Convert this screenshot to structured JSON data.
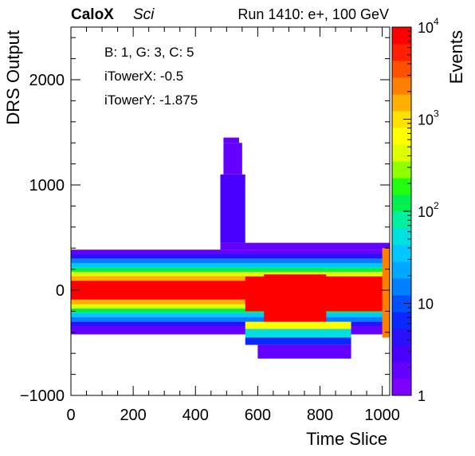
{
  "chart_data": {
    "type": "heatmap",
    "title_parts": {
      "experiment": "CaloX",
      "detector": "Sci",
      "run": "Run 1410: e+, 100 GeV"
    },
    "annotations": [
      "B: 1, G: 3, C: 5",
      "iTowerX: -0.5",
      "iTowerY: -1.875"
    ],
    "xlabel": "Time Slice",
    "ylabel": "DRS Output",
    "zlabel": "Events",
    "xlim": [
      0,
      1024
    ],
    "ylim": [
      -1000,
      2500
    ],
    "zlim": [
      1,
      10000
    ],
    "z_scale": "log",
    "x_ticks": [
      0,
      200,
      400,
      600,
      800,
      1000
    ],
    "x_tick_labels": [
      "0",
      "200",
      "400",
      "600",
      "800",
      "1000"
    ],
    "y_ticks": [
      -1000,
      0,
      1000,
      2000
    ],
    "y_tick_labels": [
      "−1000",
      "0",
      "1000",
      "2000"
    ],
    "z_ticks": [
      1,
      10,
      100,
      1000,
      10000
    ],
    "z_tick_labels": [
      "1",
      "10",
      "10^2",
      "10^3",
      "10^4"
    ],
    "palette": [
      "#7b00ff",
      "#6400ff",
      "#4a00ff",
      "#2a10ff",
      "#0a28ff",
      "#0050ff",
      "#0080ff",
      "#00a8ff",
      "#00c8ff",
      "#00e0e0",
      "#00f0a0",
      "#00f050",
      "#20ff10",
      "#90ff00",
      "#e0ff00",
      "#ffff00",
      "#ffe000",
      "#ffb000",
      "#ff8000",
      "#ff5000",
      "#ff2000",
      "#ff0000"
    ],
    "bands": [
      {
        "x": [
          0,
          1024
        ],
        "y": [
          -90,
          90
        ],
        "level": 1.0
      },
      {
        "x": [
          0,
          1024
        ],
        "y": [
          90,
          135
        ],
        "level": 0.83
      },
      {
        "x": [
          0,
          1024
        ],
        "y": [
          -135,
          -90
        ],
        "level": 0.83
      },
      {
        "x": [
          0,
          1024
        ],
        "y": [
          135,
          175
        ],
        "level": 0.68
      },
      {
        "x": [
          0,
          1024
        ],
        "y": [
          -175,
          -135
        ],
        "level": 0.68
      },
      {
        "x": [
          0,
          1024
        ],
        "y": [
          175,
          215
        ],
        "level": 0.53
      },
      {
        "x": [
          0,
          1024
        ],
        "y": [
          -215,
          -175
        ],
        "level": 0.53
      },
      {
        "x": [
          0,
          1024
        ],
        "y": [
          215,
          255
        ],
        "level": 0.4
      },
      {
        "x": [
          0,
          1024
        ],
        "y": [
          -255,
          -215
        ],
        "level": 0.4
      },
      {
        "x": [
          0,
          1024
        ],
        "y": [
          255,
          300
        ],
        "level": 0.27
      },
      {
        "x": [
          0,
          1024
        ],
        "y": [
          -300,
          -255
        ],
        "level": 0.27
      },
      {
        "x": [
          0,
          1024
        ],
        "y": [
          300,
          345
        ],
        "level": 0.15
      },
      {
        "x": [
          0,
          1024
        ],
        "y": [
          -345,
          -300
        ],
        "level": 0.15
      },
      {
        "x": [
          0,
          1024
        ],
        "y": [
          345,
          385
        ],
        "level": 0.05
      },
      {
        "x": [
          0,
          1024
        ],
        "y": [
          -420,
          -345
        ],
        "level": 0.05
      },
      {
        "x": [
          560,
          1024
        ],
        "y": [
          -200,
          130
        ],
        "level": 1.0
      },
      {
        "x": [
          620,
          820
        ],
        "y": [
          -300,
          150
        ],
        "level": 1.0
      },
      {
        "x": [
          560,
          900
        ],
        "y": [
          -370,
          -300
        ],
        "level": 0.7
      },
      {
        "x": [
          560,
          900
        ],
        "y": [
          -450,
          -370
        ],
        "level": 0.45
      },
      {
        "x": [
          560,
          900
        ],
        "y": [
          -520,
          -450
        ],
        "level": 0.2
      },
      {
        "x": [
          600,
          900
        ],
        "y": [
          -650,
          -520
        ],
        "level": 0.05
      },
      {
        "x": [
          480,
          1024
        ],
        "y": [
          385,
          450
        ],
        "level": 0.05
      },
      {
        "x": [
          480,
          560
        ],
        "y": [
          450,
          1100
        ],
        "level": 0.08
      },
      {
        "x": [
          490,
          550
        ],
        "y": [
          1100,
          1400
        ],
        "level": 0.05
      },
      {
        "x": [
          490,
          540
        ],
        "y": [
          1400,
          1450
        ],
        "level": 0.06
      },
      {
        "x": [
          1000,
          1024
        ],
        "y": [
          -450,
          400
        ],
        "level": 0.85
      }
    ]
  }
}
